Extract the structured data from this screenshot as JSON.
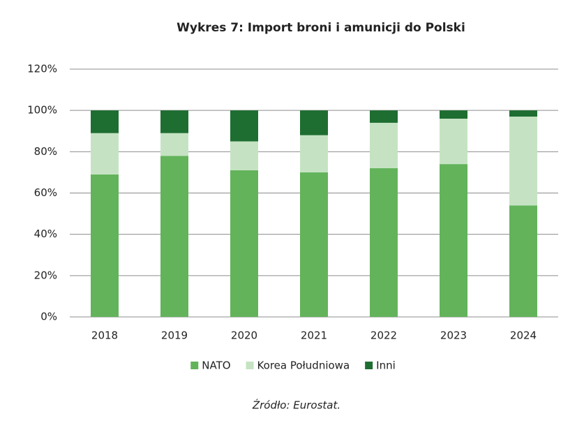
{
  "chart_data": {
    "type": "stacked_bar",
    "title": "Wykres 7: Import broni i amunicji do Polski",
    "categories": [
      "2018",
      "2019",
      "2020",
      "2021",
      "2022",
      "2023",
      "2024"
    ],
    "series": [
      {
        "name": "NATO",
        "color": "#63b35b",
        "values": [
          69,
          78,
          71,
          70,
          72,
          74,
          54
        ]
      },
      {
        "name": "Korea Południowa",
        "color": "#c5e3c3",
        "values": [
          20,
          11,
          14,
          18,
          22,
          22,
          43
        ]
      },
      {
        "name": "Inni",
        "color": "#1e6e31",
        "values": [
          11,
          11,
          15,
          12,
          6,
          4,
          3
        ]
      }
    ],
    "ylim": [
      0,
      120
    ],
    "yticks": [
      {
        "value": 0,
        "label": "0%"
      },
      {
        "value": 20,
        "label": "20%"
      },
      {
        "value": 40,
        "label": "40%"
      },
      {
        "value": 60,
        "label": "60%"
      },
      {
        "value": 80,
        "label": "80%"
      },
      {
        "value": 100,
        "label": "100%"
      },
      {
        "value": 120,
        "label": "120%"
      }
    ],
    "grid": true,
    "legend": "bottom",
    "source": "Źródło: Eurostat."
  }
}
